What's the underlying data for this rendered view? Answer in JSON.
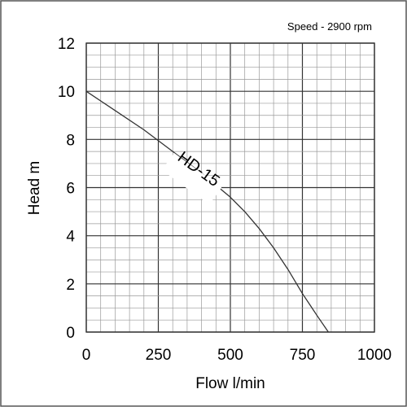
{
  "chart_data": {
    "type": "line",
    "title": "",
    "annotation": "Speed - 2900 rpm",
    "xlabel": "Flow l/min",
    "ylabel": "Head m",
    "xlim": [
      0,
      1000
    ],
    "ylim": [
      0,
      12
    ],
    "x_ticks": [
      "0",
      "250",
      "500",
      "750",
      "1000"
    ],
    "y_ticks": [
      "0",
      "2",
      "4",
      "6",
      "8",
      "10",
      "12"
    ],
    "grid": true,
    "series": [
      {
        "name": "HD-15",
        "x": [
          0,
          100,
          200,
          300,
          400,
          500,
          550,
          600,
          650,
          700,
          750,
          800,
          840
        ],
        "y": [
          10,
          9.2,
          8.4,
          7.5,
          6.6,
          5.6,
          5.0,
          4.3,
          3.5,
          2.6,
          1.6,
          0.7,
          0
        ]
      }
    ]
  },
  "colors": {
    "grid_major": "#333333",
    "grid_minor": "#999999",
    "curve": "#333333",
    "frame": "#555555"
  }
}
